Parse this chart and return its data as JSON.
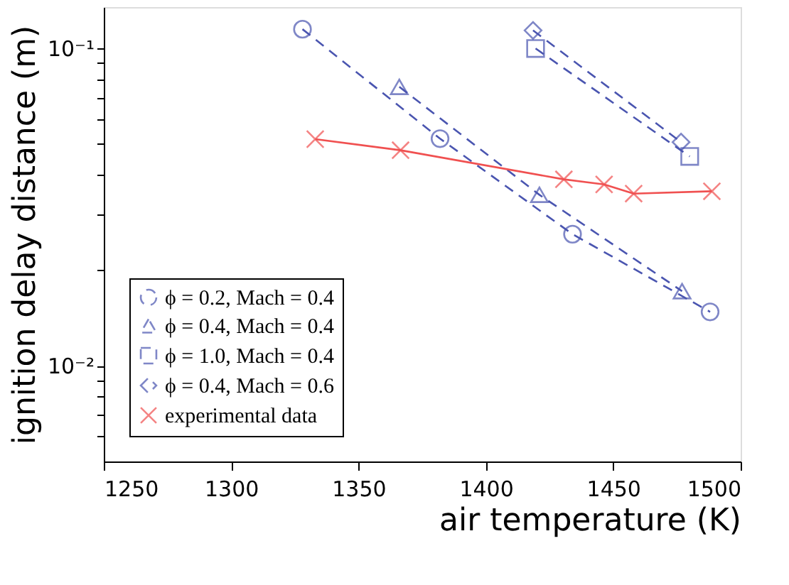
{
  "chart_data": {
    "type": "line",
    "xlabel": "air temperature (K)",
    "ylabel": "ignition delay distance (m)",
    "xlim": [
      1250,
      1500
    ],
    "xticks": [
      1250,
      1300,
      1350,
      1400,
      1450,
      1500
    ],
    "ylim": [
      0.005,
      0.135
    ],
    "log": "y",
    "yticks": [
      {
        "value": 0.006,
        "label": null
      },
      {
        "value": 0.007,
        "label": null
      },
      {
        "value": 0.008,
        "label": null
      },
      {
        "value": 0.009,
        "label": null
      },
      {
        "value": 0.01,
        "label": "10⁻²"
      },
      {
        "value": 0.02,
        "label": null
      },
      {
        "value": 0.03,
        "label": null
      },
      {
        "value": 0.04,
        "label": null
      },
      {
        "value": 0.05,
        "label": null
      },
      {
        "value": 0.06,
        "label": null
      },
      {
        "value": 0.07,
        "label": null
      },
      {
        "value": 0.08,
        "label": null
      },
      {
        "value": 0.09,
        "label": null
      },
      {
        "value": 0.1,
        "label": "10⁻¹"
      }
    ],
    "grid": false,
    "legend": "bottom left",
    "series": [
      {
        "name": "ϕ = 0.2, Mach = 0.4",
        "color": "#4a55b0",
        "marker": "circle",
        "line_style": "dashed",
        "x": [
          1328,
          1382,
          1434,
          1488
        ],
        "values": [
          0.115,
          0.052,
          0.026,
          0.0148
        ]
      },
      {
        "name": "ϕ = 0.4, Mach = 0.4",
        "color": "#4a55b0",
        "marker": "triangle",
        "line_style": "dashed",
        "x": [
          1366,
          1421,
          1477
        ],
        "values": [
          0.0757,
          0.0346,
          0.0172
        ]
      },
      {
        "name": "ϕ = 1.0, Mach = 0.4",
        "color": "#4a55b0",
        "marker": "square",
        "line_style": "dashed",
        "x": [
          1419.5,
          1480
        ],
        "values": [
          0.1,
          0.0457
        ]
      },
      {
        "name": "ϕ = 0.4, Mach = 0.6",
        "color": "#4a55b0",
        "marker": "diamond",
        "line_style": "dashed",
        "x": [
          1418.5,
          1476.6
        ],
        "values": [
          0.114,
          0.0507
        ]
      },
      {
        "name": "experimental data",
        "color": "#f05050",
        "marker": "cross",
        "line_style": "solid",
        "x": [
          1333,
          1366.5,
          1430.6,
          1446.4,
          1458,
          1488.7
        ],
        "values": [
          0.0518,
          0.0478,
          0.0387,
          0.0373,
          0.0349,
          0.0355
        ]
      }
    ]
  }
}
